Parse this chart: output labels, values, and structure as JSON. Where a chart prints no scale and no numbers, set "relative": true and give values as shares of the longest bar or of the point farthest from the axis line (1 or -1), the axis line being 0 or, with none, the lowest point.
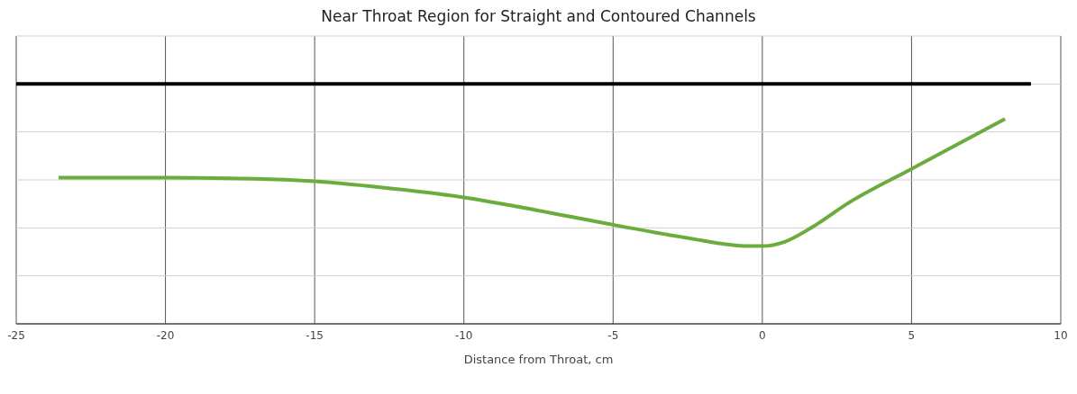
{
  "chart_data": {
    "type": "line",
    "title": "Near Throat Region for Straight and Contoured Channels",
    "xlabel": "Distance from Throat, cm",
    "relative": true,
    "xlim": [
      -25,
      10
    ],
    "xticks": [
      -25,
      -20,
      -15,
      -10,
      -5,
      0,
      5,
      10
    ],
    "grid": true,
    "marker": "none",
    "line_style": "solid",
    "series": [
      {
        "color": "#000000",
        "x": [
          -25,
          9
        ],
        "values": [
          1,
          1
        ]
      },
      {
        "color": "#6aad3d",
        "x": [
          -23.58,
          -20,
          -17,
          -15,
          -12.8,
          -10,
          -8,
          -5,
          -2.56,
          -0.45,
          0,
          0.75,
          1.66,
          2.86,
          5.03,
          8.13
        ],
        "values": [
          0.609,
          0.609,
          0.605,
          0.594,
          0.569,
          0.527,
          0.484,
          0.413,
          0.359,
          0.324,
          0.324,
          0.342,
          0.402,
          0.502,
          0.648,
          0.854
        ]
      }
    ]
  }
}
